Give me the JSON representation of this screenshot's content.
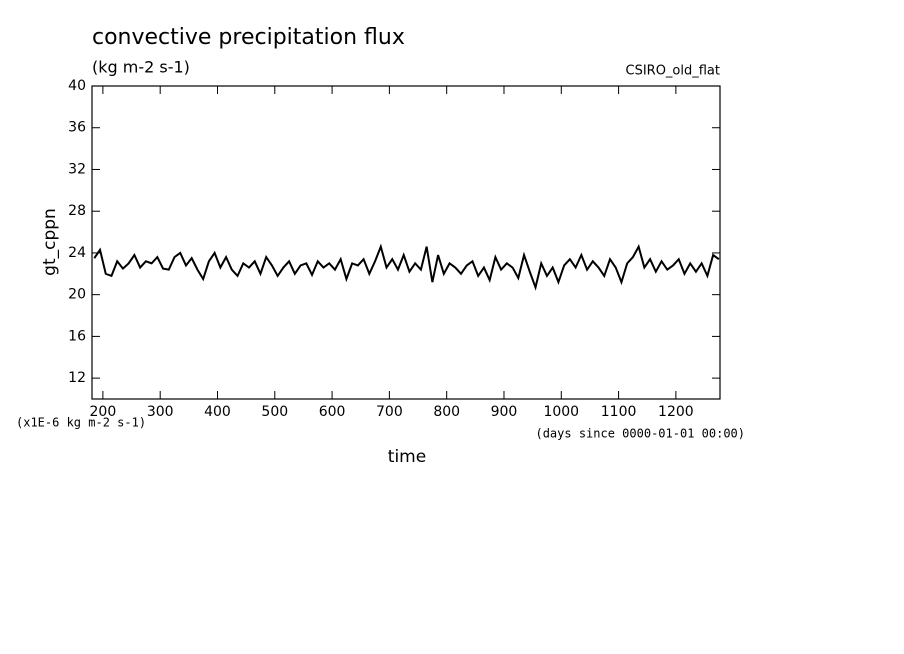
{
  "chart_data": {
    "type": "line",
    "title": "convective precipitation flux",
    "subtitle": "(kg m-2 s-1)",
    "annotation": "CSIRO_old_flat",
    "y_label": "gt_cppn",
    "x_label": "time",
    "y_unit_note": "(x1E-6 kg m-2 s-1)",
    "x_unit_note": "(days since 0000-01-01 00:00)",
    "color": "#000000",
    "xlim": [
      181,
      1277
    ],
    "ylim": [
      10,
      40
    ],
    "xticks": [
      200,
      300,
      400,
      500,
      600,
      700,
      800,
      900,
      1000,
      1100,
      1200
    ],
    "yticks": [
      12,
      16,
      20,
      24,
      28,
      32,
      36,
      40
    ],
    "x": [
      185,
      195,
      205,
      215,
      225,
      235,
      245,
      255,
      265,
      275,
      285,
      295,
      305,
      315,
      325,
      335,
      345,
      355,
      365,
      375,
      385,
      395,
      405,
      415,
      425,
      435,
      445,
      455,
      465,
      475,
      485,
      495,
      505,
      515,
      525,
      535,
      545,
      555,
      565,
      575,
      585,
      595,
      605,
      615,
      625,
      635,
      645,
      655,
      665,
      675,
      685,
      695,
      705,
      715,
      725,
      735,
      745,
      755,
      765,
      775,
      785,
      795,
      805,
      815,
      825,
      835,
      845,
      855,
      865,
      875,
      885,
      895,
      905,
      915,
      925,
      935,
      945,
      955,
      965,
      975,
      985,
      995,
      1005,
      1015,
      1025,
      1035,
      1045,
      1055,
      1065,
      1075,
      1085,
      1095,
      1105,
      1115,
      1125,
      1135,
      1145,
      1155,
      1165,
      1175,
      1185,
      1195,
      1205,
      1215,
      1225,
      1235,
      1245,
      1255,
      1265,
      1275
    ],
    "values": [
      23.5,
      24.3,
      22.0,
      21.8,
      23.2,
      22.5,
      23.0,
      23.8,
      22.6,
      23.2,
      23.0,
      23.6,
      22.5,
      22.4,
      23.6,
      24.0,
      22.8,
      23.5,
      22.4,
      21.5,
      23.2,
      24.0,
      22.6,
      23.6,
      22.4,
      21.8,
      23.0,
      22.6,
      23.2,
      22.0,
      23.6,
      22.8,
      21.8,
      22.6,
      23.2,
      22.0,
      22.8,
      23.0,
      21.9,
      23.2,
      22.6,
      23.0,
      22.4,
      23.4,
      21.5,
      23.0,
      22.8,
      23.4,
      22.0,
      23.2,
      24.6,
      22.6,
      23.4,
      22.4,
      23.8,
      22.2,
      23.0,
      22.4,
      24.6,
      21.2,
      23.8,
      22.0,
      23.0,
      22.6,
      22.0,
      22.8,
      23.2,
      21.8,
      22.6,
      21.4,
      23.6,
      22.4,
      23.0,
      22.6,
      21.6,
      23.8,
      22.2,
      20.7,
      23.0,
      21.8,
      22.6,
      21.2,
      22.8,
      23.4,
      22.6,
      23.8,
      22.4,
      23.2,
      22.6,
      21.8,
      23.4,
      22.6,
      21.2,
      23.0,
      23.6,
      24.6,
      22.6,
      23.4,
      22.2,
      23.2,
      22.4,
      22.8,
      23.4,
      22.0,
      23.0,
      22.2,
      23.0,
      21.8,
      23.8,
      23.4
    ]
  }
}
